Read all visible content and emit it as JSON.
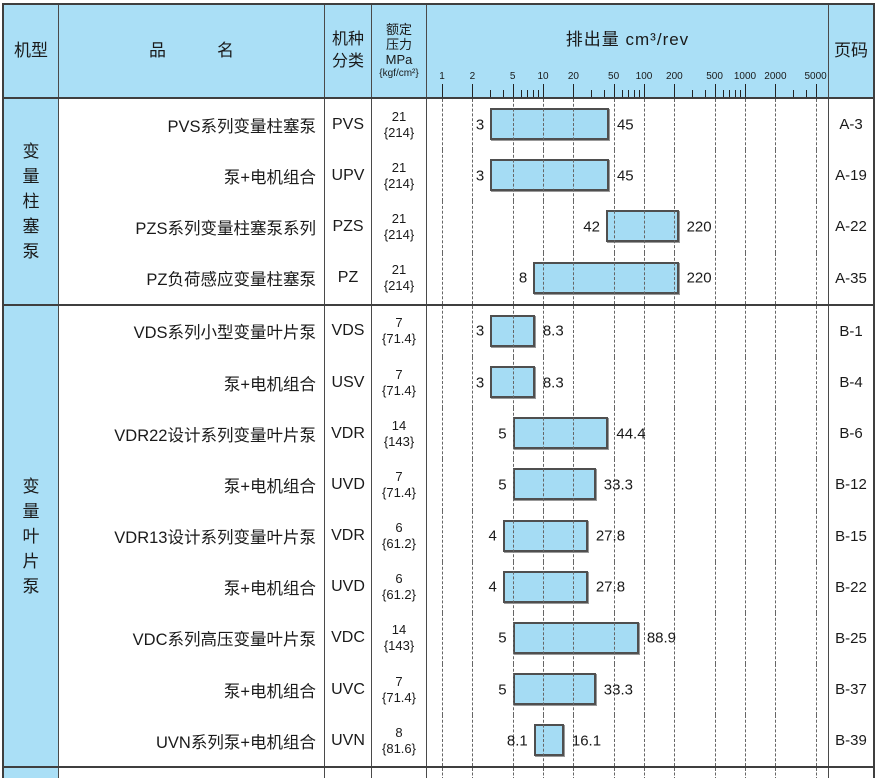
{
  "header": {
    "col_machine_type": "机型",
    "col_product_name": "品　　　名",
    "col_class_line1": "机种",
    "col_class_line2": "分类",
    "col_pressure_lines": [
      "额定",
      "压力",
      "MPa",
      "{kgf/cm²}"
    ],
    "col_displacement_title": "排出量  cm³/rev",
    "col_page": "页码"
  },
  "axis": {
    "unit": "cm³/rev",
    "scale": "log",
    "labeled_ticks": [
      1,
      2,
      5,
      10,
      20,
      50,
      100,
      200,
      500,
      1000,
      2000,
      5000
    ],
    "minor_ticks": [
      3,
      4,
      6,
      7,
      8,
      9,
      30,
      40,
      60,
      70,
      80,
      90,
      300,
      400,
      600,
      700,
      800,
      900,
      3000,
      4000
    ]
  },
  "chart_data": {
    "type": "bar",
    "orientation": "horizontal-range",
    "title": "排出量 cm³/rev",
    "xlabel": "排出量 cm³/rev",
    "x_scale": "log",
    "x_ticks": [
      1,
      2,
      5,
      10,
      20,
      50,
      100,
      200,
      500,
      1000,
      2000,
      5000
    ],
    "series": [
      {
        "name": "PVS",
        "range": [
          3,
          45
        ]
      },
      {
        "name": "UPV",
        "range": [
          3,
          45
        ]
      },
      {
        "name": "PZS",
        "range": [
          42,
          220
        ]
      },
      {
        "name": "PZ",
        "range": [
          8,
          220
        ]
      },
      {
        "name": "VDS",
        "range": [
          3,
          8.3
        ]
      },
      {
        "name": "USV",
        "range": [
          3,
          8.3
        ]
      },
      {
        "name": "VDR",
        "range": [
          5,
          44.4
        ]
      },
      {
        "name": "UVD",
        "range": [
          5,
          33.3
        ]
      },
      {
        "name": "VDR",
        "range": [
          4,
          27.8
        ]
      },
      {
        "name": "UVD",
        "range": [
          4,
          27.8
        ]
      },
      {
        "name": "VDC",
        "range": [
          5,
          88.9
        ]
      },
      {
        "name": "UVC",
        "range": [
          5,
          33.3
        ]
      },
      {
        "name": "UVN",
        "range": [
          8.1,
          16.1
        ]
      }
    ]
  },
  "groups": [
    {
      "machine_type": "变量柱塞泵",
      "rows": [
        {
          "product_name": "PVS系列变量柱塞泵",
          "code": "PVS",
          "pressure_mpa": "21",
          "pressure_kgf": "{214}",
          "min": 3,
          "max": 45,
          "page": "A-3"
        },
        {
          "product_name": "泵+电机组合",
          "code": "UPV",
          "pressure_mpa": "21",
          "pressure_kgf": "{214}",
          "min": 3,
          "max": 45,
          "page": "A-19"
        },
        {
          "product_name": "PZS系列变量柱塞泵系列",
          "code": "PZS",
          "pressure_mpa": "21",
          "pressure_kgf": "{214}",
          "min": 42,
          "max": 220,
          "page": "A-22"
        },
        {
          "product_name": "PZ负荷感应变量柱塞泵",
          "code": "PZ",
          "pressure_mpa": "21",
          "pressure_kgf": "{214}",
          "min": 8,
          "max": 220,
          "page": "A-35"
        }
      ]
    },
    {
      "machine_type": "变量叶片泵",
      "rows": [
        {
          "product_name": "VDS系列小型变量叶片泵",
          "code": "VDS",
          "pressure_mpa": "7",
          "pressure_kgf": "{71.4}",
          "min": 3,
          "max": 8.3,
          "page": "B-1"
        },
        {
          "product_name": "泵+电机组合",
          "code": "USV",
          "pressure_mpa": "7",
          "pressure_kgf": "{71.4}",
          "min": 3,
          "max": 8.3,
          "page": "B-4"
        },
        {
          "product_name": "VDR22设计系列变量叶片泵",
          "code": "VDR",
          "pressure_mpa": "14",
          "pressure_kgf": "{143}",
          "min": 5,
          "max": 44.4,
          "page": "B-6"
        },
        {
          "product_name": "泵+电机组合",
          "code": "UVD",
          "pressure_mpa": "7",
          "pressure_kgf": "{71.4}",
          "min": 5,
          "max": 33.3,
          "page": "B-12"
        },
        {
          "product_name": "VDR13设计系列变量叶片泵",
          "code": "VDR",
          "pressure_mpa": "6",
          "pressure_kgf": "{61.2}",
          "min": 4,
          "max": 27.8,
          "page": "B-15"
        },
        {
          "product_name": "泵+电机组合",
          "code": "UVD",
          "pressure_mpa": "6",
          "pressure_kgf": "{61.2}",
          "min": 4,
          "max": 27.8,
          "page": "B-22"
        },
        {
          "product_name": "VDC系列高压变量叶片泵",
          "code": "VDC",
          "pressure_mpa": "14",
          "pressure_kgf": "{143}",
          "min": 5,
          "max": 88.9,
          "page": "B-25"
        },
        {
          "product_name": "泵+电机组合",
          "code": "UVC",
          "pressure_mpa": "7",
          "pressure_kgf": "{71.4}",
          "min": 5,
          "max": 33.3,
          "page": "B-37"
        },
        {
          "product_name": "UVN系列泵+电机组合",
          "code": "UVN",
          "pressure_mpa": "8",
          "pressure_kgf": "{81.6}",
          "min": 8.1,
          "max": 16.1,
          "page": "B-39"
        }
      ]
    }
  ],
  "colors": {
    "header_bg": "#aadff6",
    "bar_fill": "#a5dcf4",
    "bar_border": "#4f4f4f",
    "grid_line": "#666666",
    "table_border": "#3f3f3f"
  }
}
